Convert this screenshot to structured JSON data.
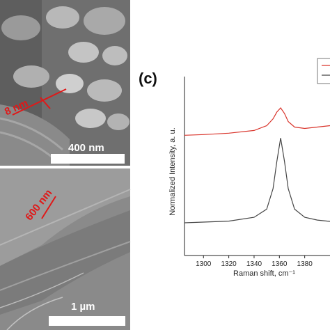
{
  "figure": {
    "panel_c_label": "(c)",
    "sem_top": {
      "scale_label": "400 nm",
      "annotation": "8 nm"
    },
    "sem_bottom": {
      "scale_label": "1 µm",
      "annotation": "600 nm"
    }
  },
  "chart_data": {
    "type": "line",
    "title": "",
    "xlabel": "Raman shift, cm⁻¹",
    "ylabel": "Normalized Intensity, a. u.",
    "xlim": [
      1285,
      1400
    ],
    "xticks": [
      1300,
      1320,
      1340,
      1360,
      1380
    ],
    "grid": false,
    "legend_position": "top-right",
    "series": [
      {
        "color": "#d9342b",
        "x": [
          1285,
          1300,
          1320,
          1340,
          1350,
          1355,
          1358,
          1361,
          1364,
          1367,
          1372,
          1380,
          1390,
          1400
        ],
        "y": [
          0.64,
          0.645,
          0.655,
          0.675,
          0.71,
          0.76,
          0.81,
          0.84,
          0.8,
          0.74,
          0.7,
          0.69,
          0.7,
          0.71
        ]
      },
      {
        "color": "#444444",
        "x": [
          1285,
          1300,
          1320,
          1340,
          1350,
          1355,
          1358,
          1361,
          1364,
          1367,
          1372,
          1380,
          1390,
          1400
        ],
        "y": [
          0.0,
          0.005,
          0.012,
          0.04,
          0.1,
          0.25,
          0.45,
          0.62,
          0.45,
          0.25,
          0.1,
          0.04,
          0.02,
          0.01
        ]
      }
    ]
  }
}
